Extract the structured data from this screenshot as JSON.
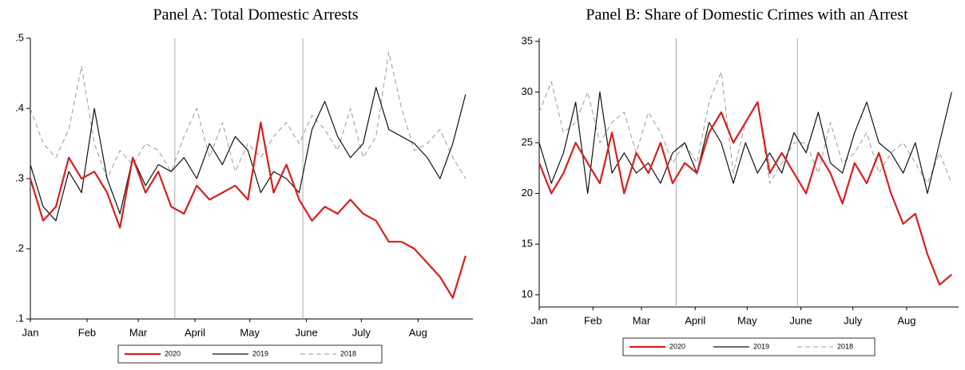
{
  "chart_data": [
    {
      "type": "line",
      "title": "Panel A: Total Domestic Arrests",
      "x": [
        1,
        8,
        15,
        22,
        29,
        36,
        43,
        50,
        57,
        64,
        71,
        78,
        85,
        92,
        99,
        106,
        113,
        120,
        127,
        134,
        141,
        148,
        155,
        162,
        169,
        176,
        183,
        190,
        197,
        204,
        211,
        218,
        225,
        232,
        239
      ],
      "xlim": [
        1,
        243
      ],
      "xticks": [
        {
          "value": 1,
          "label": "Jan"
        },
        {
          "value": 32,
          "label": "Feb"
        },
        {
          "value": 60,
          "label": "Mar"
        },
        {
          "value": 91,
          "label": "April"
        },
        {
          "value": 121,
          "label": "May"
        },
        {
          "value": 152,
          "label": "June"
        },
        {
          "value": 182,
          "label": "July"
        },
        {
          "value": 213,
          "label": "Aug"
        }
      ],
      "ylim": [
        0.1,
        0.5
      ],
      "yticks": [
        {
          "value": 0.1,
          "label": ".1"
        },
        {
          "value": 0.2,
          "label": ".2"
        },
        {
          "value": 0.3,
          "label": ".3"
        },
        {
          "value": 0.4,
          "label": ".4"
        },
        {
          "value": 0.5,
          "label": ".5"
        }
      ],
      "vlines": [
        80,
        150
      ],
      "series": [
        {
          "name": "2020",
          "color": "#d42020",
          "line_style": "solid",
          "width": 2.2,
          "values": [
            0.3,
            0.24,
            0.26,
            0.33,
            0.3,
            0.31,
            0.28,
            0.23,
            0.33,
            0.28,
            0.31,
            0.26,
            0.25,
            0.29,
            0.27,
            0.28,
            0.29,
            0.27,
            0.38,
            0.28,
            0.32,
            0.27,
            0.24,
            0.26,
            0.25,
            0.27,
            0.25,
            0.24,
            0.21,
            0.21,
            0.2,
            0.18,
            0.16,
            0.13,
            0.19
          ]
        },
        {
          "name": "2019",
          "color": "#111111",
          "line_style": "solid",
          "width": 1.2,
          "values": [
            0.32,
            0.26,
            0.24,
            0.31,
            0.28,
            0.4,
            0.3,
            0.25,
            0.33,
            0.29,
            0.32,
            0.31,
            0.33,
            0.3,
            0.35,
            0.32,
            0.36,
            0.34,
            0.28,
            0.31,
            0.3,
            0.28,
            0.37,
            0.41,
            0.36,
            0.33,
            0.35,
            0.43,
            0.37,
            0.36,
            0.35,
            0.33,
            0.3,
            0.35,
            0.42
          ]
        },
        {
          "name": "2018",
          "color": "#999999",
          "line_style": "dashed",
          "width": 1,
          "values": [
            0.4,
            0.35,
            0.33,
            0.37,
            0.46,
            0.35,
            0.3,
            0.34,
            0.32,
            0.35,
            0.34,
            0.31,
            0.36,
            0.4,
            0.33,
            0.38,
            0.31,
            0.35,
            0.33,
            0.36,
            0.38,
            0.35,
            0.39,
            0.37,
            0.34,
            0.4,
            0.33,
            0.36,
            0.48,
            0.4,
            0.34,
            0.35,
            0.37,
            0.33,
            0.3
          ]
        }
      ]
    },
    {
      "type": "line",
      "title": "Panel B: Share of Domestic Crimes with an Arrest",
      "x": [
        1,
        8,
        15,
        22,
        29,
        36,
        43,
        50,
        57,
        64,
        71,
        78,
        85,
        92,
        99,
        106,
        113,
        120,
        127,
        134,
        141,
        148,
        155,
        162,
        169,
        176,
        183,
        190,
        197,
        204,
        211,
        218,
        225,
        232,
        239
      ],
      "xlim": [
        1,
        243
      ],
      "xticks": [
        {
          "value": 1,
          "label": "Jan"
        },
        {
          "value": 32,
          "label": "Feb"
        },
        {
          "value": 60,
          "label": "Mar"
        },
        {
          "value": 91,
          "label": "April"
        },
        {
          "value": 121,
          "label": "May"
        },
        {
          "value": 152,
          "label": "June"
        },
        {
          "value": 182,
          "label": "July"
        },
        {
          "value": 213,
          "label": "Aug"
        }
      ],
      "ylim": [
        8.8,
        35.3
      ],
      "yticks": [
        10,
        15,
        20,
        25,
        30,
        35
      ],
      "vlines": [
        80,
        150
      ],
      "series": [
        {
          "name": "2020",
          "color": "#d42020",
          "line_style": "solid",
          "width": 2.2,
          "values": [
            23,
            20,
            22,
            25,
            23,
            21,
            26,
            20,
            24,
            22,
            25,
            21,
            23,
            22,
            26,
            28,
            25,
            27,
            29,
            22,
            24,
            22,
            20,
            24,
            22,
            19,
            23,
            21,
            24,
            20,
            17,
            18,
            14,
            11,
            12
          ]
        },
        {
          "name": "2019",
          "color": "#111111",
          "line_style": "solid",
          "width": 1.2,
          "values": [
            25,
            21,
            24,
            29,
            20,
            30,
            22,
            24,
            22,
            23,
            21,
            24,
            25,
            22,
            27,
            25,
            21,
            25,
            22,
            24,
            22,
            26,
            24,
            28,
            23,
            22,
            26,
            29,
            25,
            24,
            22,
            25,
            20,
            25,
            30
          ]
        },
        {
          "name": "2018",
          "color": "#999999",
          "line_style": "dashed",
          "width": 1,
          "values": [
            28,
            31,
            26,
            27,
            30,
            25,
            27,
            28,
            24,
            28,
            26,
            23,
            25,
            23,
            29,
            32,
            22,
            27,
            29,
            21,
            23,
            25,
            25,
            22,
            27,
            23,
            24,
            26,
            22,
            24,
            25,
            23,
            21,
            24,
            21
          ]
        }
      ]
    }
  ]
}
